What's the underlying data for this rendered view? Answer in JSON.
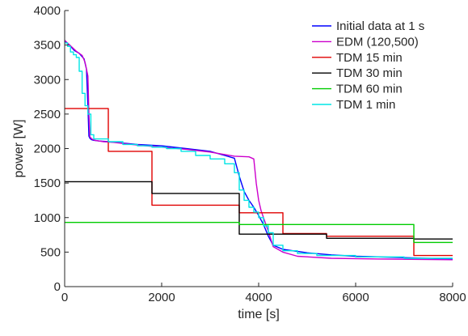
{
  "chart_data": {
    "type": "line",
    "title": "",
    "xlabel": "time [s]",
    "ylabel": "power [W]",
    "xlim": [
      0,
      8000
    ],
    "ylim": [
      0,
      4000
    ],
    "xticks": [
      0,
      2000,
      4000,
      6000,
      8000
    ],
    "yticks": [
      0,
      500,
      1000,
      1500,
      2000,
      2500,
      3000,
      3500,
      4000
    ],
    "grid": false,
    "legend_position": "top-right",
    "series": [
      {
        "name": "Initial data at 1 s",
        "color": "#0000ff",
        "step": false,
        "x": [
          0,
          100,
          200,
          300,
          400,
          450,
          480,
          500,
          520,
          550,
          600,
          700,
          900,
          1200,
          1500,
          2000,
          2500,
          3000,
          3300,
          3500,
          3600,
          3700,
          3800,
          3900,
          4000,
          4100,
          4200,
          4300,
          4500,
          5000,
          5500,
          6000,
          7000,
          8000
        ],
        "y": [
          3560,
          3500,
          3420,
          3380,
          3300,
          3150,
          2600,
          2180,
          2150,
          2130,
          2120,
          2110,
          2100,
          2080,
          2060,
          2040,
          2000,
          1960,
          1900,
          1860,
          1600,
          1380,
          1250,
          1150,
          1030,
          900,
          730,
          600,
          540,
          490,
          460,
          440,
          420,
          400
        ]
      },
      {
        "name": "EDM (120,500)",
        "color": "#cc00cc",
        "step": false,
        "x": [
          0,
          120,
          240,
          360,
          420,
          480,
          500,
          520,
          560,
          620,
          800,
          1000,
          1500,
          2000,
          2500,
          3000,
          3500,
          3800,
          3900,
          3950,
          4000,
          4050,
          4100,
          4200,
          4300,
          4500,
          4800,
          5500,
          6500,
          8000
        ],
        "y": [
          3570,
          3490,
          3410,
          3350,
          3250,
          3050,
          2500,
          2170,
          2140,
          2120,
          2100,
          2090,
          2050,
          2020,
          1990,
          1950,
          1890,
          1880,
          1850,
          1500,
          1250,
          1100,
          1000,
          800,
          580,
          500,
          440,
          410,
          400,
          390
        ]
      },
      {
        "name": "TDM 15 min",
        "color": "#e00000",
        "step": true,
        "x": [
          0,
          900,
          1800,
          2700,
          3600,
          4500,
          5400,
          6300,
          7200,
          8000
        ],
        "y": [
          2580,
          1960,
          1180,
          1180,
          1070,
          770,
          730,
          730,
          450,
          450
        ]
      },
      {
        "name": "TDM 30 min",
        "color": "#000000",
        "step": true,
        "x": [
          0,
          1800,
          3600,
          5400,
          7200,
          8000
        ],
        "y": [
          1520,
          1350,
          760,
          700,
          690,
          690
        ]
      },
      {
        "name": "TDM 60 min",
        "color": "#00cc00",
        "step": true,
        "x": [
          0,
          3600,
          7200,
          8000
        ],
        "y": [
          930,
          900,
          640,
          640
        ]
      },
      {
        "name": "TDM 1 min",
        "color": "#00e5e5",
        "step": true,
        "x": [
          0,
          60,
          120,
          180,
          240,
          300,
          360,
          420,
          480,
          540,
          600,
          900,
          1200,
          1500,
          1800,
          2100,
          2400,
          2700,
          3000,
          3300,
          3500,
          3600,
          3700,
          3800,
          3900,
          4000,
          4100,
          4200,
          4300,
          4500,
          4800,
          5200,
          6000,
          7000,
          8000
        ],
        "y": [
          3530,
          3480,
          3400,
          3360,
          3320,
          3120,
          2800,
          2620,
          2500,
          2200,
          2140,
          2100,
          2060,
          2040,
          2020,
          2000,
          1960,
          1900,
          1850,
          1780,
          1650,
          1400,
          1250,
          1150,
          1080,
          1000,
          880,
          780,
          600,
          520,
          480,
          450,
          430,
          410,
          400
        ]
      }
    ]
  }
}
